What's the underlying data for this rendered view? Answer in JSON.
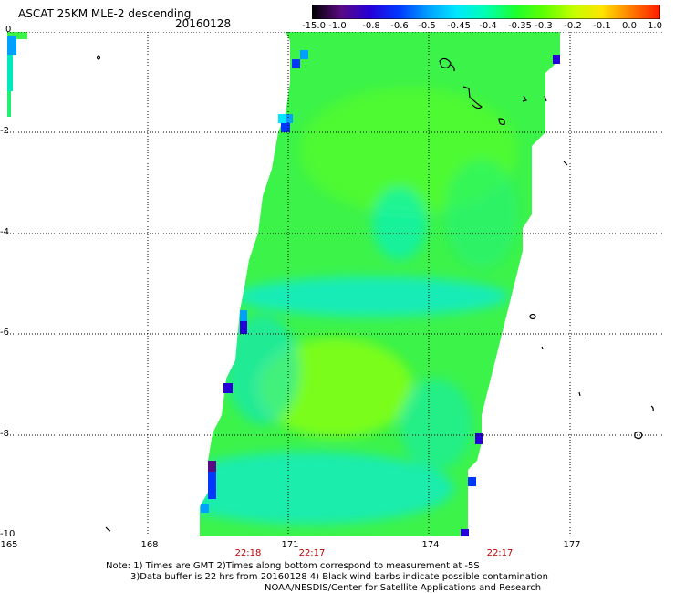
{
  "header": {
    "title": "ASCAT 25KM MLE-2 descending",
    "date": "20160128"
  },
  "colorbar": {
    "labels": [
      "-15.0",
      "-1.0",
      "-0.8",
      "-0.6",
      "-0.5",
      "-0.45",
      "-0.4",
      "-0.35",
      "-0.3",
      "-0.2",
      "-0.1",
      "0.0",
      "1.0"
    ],
    "colors": [
      "#000000",
      "#5a0a82",
      "#2600d8",
      "#0038ff",
      "#00a0ff",
      "#00e8ff",
      "#00ffb0",
      "#1cff30",
      "#60ff00",
      "#c4ff00",
      "#ffe400",
      "#ff7a00",
      "#ff1a00"
    ]
  },
  "axes": {
    "y_labels": [
      "0",
      "-2",
      "-4",
      "-6",
      "-8",
      "-10"
    ],
    "x_labels": [
      "165",
      "168",
      "171",
      "174",
      "177"
    ],
    "time_labels": [
      "22:18",
      "22:17",
      "22:17"
    ]
  },
  "notes": {
    "line1": "Note: 1) Times are GMT 2)Times along bottom correspond to measurement at -5S",
    "line2": "3)Data buffer is 22 hrs from 20160128 4) Black wind barbs indicate possible contamination",
    "line3": "NOAA/NESDIS/Center for Satellite Applications and Research"
  }
}
